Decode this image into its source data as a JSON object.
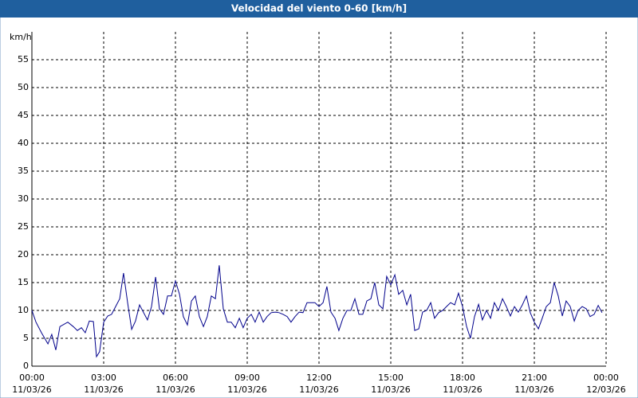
{
  "chart_data": {
    "type": "line",
    "title": "Velocidad del viento 0-60 [km/h]",
    "y_label": "km/h",
    "xlim": [
      0,
      24
    ],
    "ylim": [
      0,
      60
    ],
    "yticks": [
      0,
      5,
      10,
      15,
      20,
      25,
      30,
      35,
      40,
      45,
      50,
      55
    ],
    "xticks": [
      {
        "value": 0,
        "label": "00:00",
        "date": "11/03/26"
      },
      {
        "value": 3,
        "label": "03:00",
        "date": "11/03/26"
      },
      {
        "value": 6,
        "label": "06:00",
        "date": "11/03/26"
      },
      {
        "value": 9,
        "label": "09:00",
        "date": "11/03/26"
      },
      {
        "value": 12,
        "label": "12:00",
        "date": "11/03/26"
      },
      {
        "value": 15,
        "label": "15:00",
        "date": "11/03/26"
      },
      {
        "value": 18,
        "label": "18:00",
        "date": "11/03/26"
      },
      {
        "value": 21,
        "label": "21:00",
        "date": "11/03/26"
      },
      {
        "value": 24,
        "label": "00:00",
        "date": "12/03/26"
      }
    ],
    "grid": true,
    "x": [
      0,
      0.17,
      0.4,
      0.67,
      0.83,
      1,
      1.17,
      1.5,
      1.73,
      1.9,
      2.07,
      2.23,
      2.4,
      2.57,
      2.7,
      2.83,
      3,
      3.17,
      3.33,
      3.5,
      3.67,
      3.83,
      4,
      4.17,
      4.33,
      4.5,
      4.67,
      4.83,
      5,
      5.17,
      5.33,
      5.5,
      5.67,
      5.83,
      6,
      6.17,
      6.33,
      6.5,
      6.67,
      6.83,
      7,
      7.17,
      7.33,
      7.5,
      7.67,
      7.83,
      8,
      8.17,
      8.33,
      8.5,
      8.67,
      8.83,
      9,
      9.17,
      9.33,
      9.5,
      9.67,
      9.83,
      10,
      10.17,
      10.33,
      10.5,
      10.67,
      10.83,
      11,
      11.17,
      11.33,
      11.5,
      11.67,
      11.83,
      12,
      12.17,
      12.33,
      12.5,
      12.67,
      12.83,
      13,
      13.17,
      13.33,
      13.5,
      13.67,
      13.83,
      14,
      14.17,
      14.33,
      14.5,
      14.67,
      14.83,
      15,
      15.17,
      15.33,
      15.5,
      15.67,
      15.83,
      16,
      16.17,
      16.33,
      16.5,
      16.67,
      16.83,
      17,
      17.17,
      17.33,
      17.5,
      17.67,
      17.83,
      18,
      18.17,
      18.33,
      18.5,
      18.67,
      18.83,
      19,
      19.17,
      19.33,
      19.5,
      19.67,
      19.83,
      20,
      20.17,
      20.33,
      20.5,
      20.67,
      20.83,
      21,
      21.17,
      21.33,
      21.5,
      21.67,
      21.83,
      22,
      22.17,
      22.33,
      22.5,
      22.67,
      22.83,
      23,
      23.17,
      23.33,
      23.5,
      23.67,
      23.83
    ],
    "series": [
      {
        "color": "#00008b",
        "values": [
          10,
          7.9,
          6,
          4,
          5.7,
          2.9,
          7.1,
          7.9,
          7.1,
          6.4,
          6.9,
          6,
          8.1,
          8,
          1.7,
          2.6,
          7.9,
          9,
          9.3,
          10.7,
          12.1,
          16.7,
          11.4,
          6.6,
          8.1,
          11,
          9.6,
          8.3,
          10.7,
          16,
          10.3,
          9.3,
          12.6,
          12.6,
          15.3,
          12.9,
          8.9,
          7.4,
          11.7,
          12.6,
          8.9,
          7.1,
          8.9,
          12.6,
          12.1,
          18.1,
          10.3,
          7.9,
          7.9,
          6.9,
          8.6,
          6.9,
          8.6,
          9.3,
          7.9,
          9.7,
          7.9,
          8.9,
          9.6,
          9.7,
          9.6,
          9.3,
          8.9,
          7.9,
          8.9,
          9.7,
          9.6,
          11.4,
          11.4,
          11.4,
          10.7,
          11.4,
          14.3,
          9.7,
          8.6,
          6.4,
          8.6,
          10,
          10,
          12.1,
          9.3,
          9.3,
          11.7,
          12.1,
          15,
          11,
          10.3,
          16.1,
          14.6,
          16.4,
          12.9,
          13.6,
          11,
          12.9,
          6.4,
          6.7,
          9.7,
          10,
          11.4,
          8.6,
          9.6,
          10,
          10.7,
          11.4,
          11,
          13.1,
          10.7,
          7.1,
          5,
          8.9,
          11.1,
          8.3,
          10,
          8.6,
          11.4,
          10,
          12.1,
          10.7,
          9,
          10.7,
          9.7,
          11,
          12.6,
          9.6,
          7.9,
          6.7,
          8.6,
          10.7,
          11.4,
          15,
          12.6,
          9,
          11.7,
          10.7,
          8.1,
          10,
          10.7,
          10.3,
          8.9,
          9.3,
          10.9,
          9.6
        ]
      }
    ]
  }
}
